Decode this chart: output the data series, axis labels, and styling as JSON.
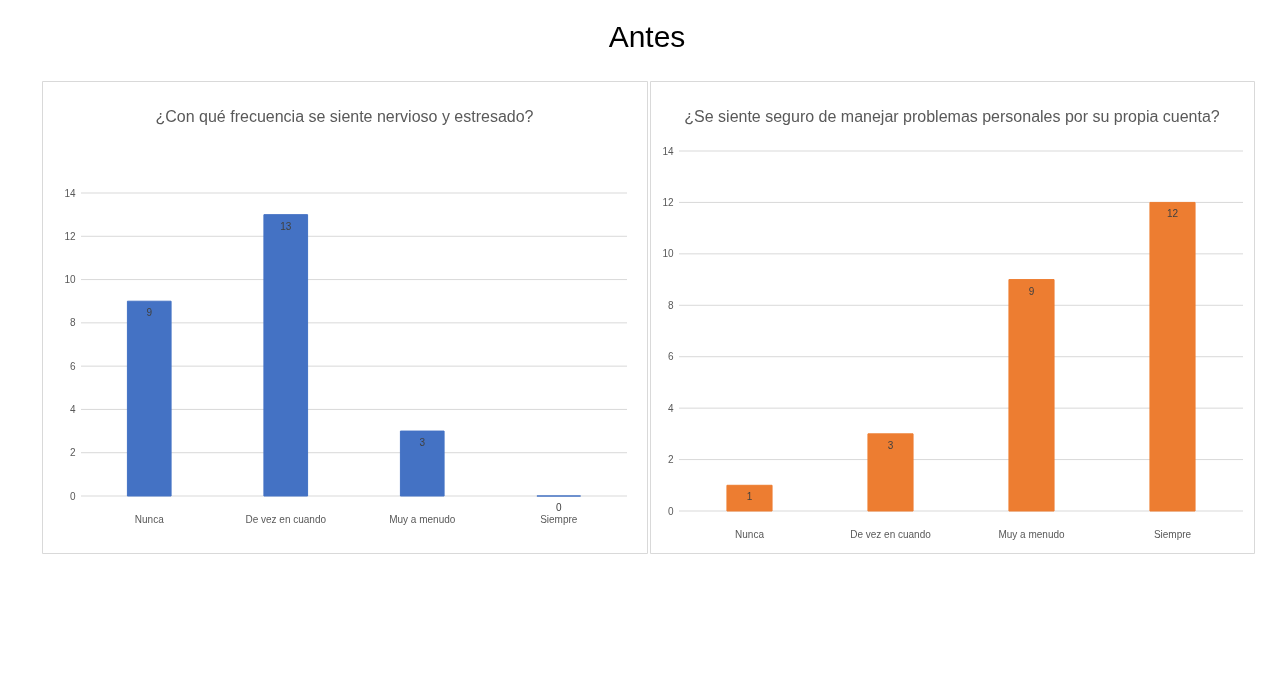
{
  "chart_data": [
    {
      "type": "other",
      "title": "Antes"
    },
    {
      "type": "bar",
      "title": "¿Con qué frecuencia se siente nervioso y estresado?",
      "categories": [
        "Nunca",
        "De vez en cuando",
        "Muy a menudo",
        "Siempre"
      ],
      "values": [
        9,
        13,
        3,
        0
      ],
      "color": "#4472c4",
      "ylim": [
        0,
        14
      ],
      "yticks": [
        0,
        2,
        4,
        6,
        8,
        10,
        12,
        14
      ],
      "grid": "y",
      "data_labels": true
    },
    {
      "type": "bar",
      "title": "¿Se siente seguro de manejar problemas personales por su propia cuenta?",
      "categories": [
        "Nunca",
        "De vez en cuando",
        "Muy a menudo",
        "Siempre"
      ],
      "values": [
        1,
        3,
        9,
        12
      ],
      "color": "#ed7d31",
      "ylim": [
        0,
        14
      ],
      "yticks": [
        0,
        2,
        4,
        6,
        8,
        10,
        12,
        14
      ],
      "grid": "y",
      "data_labels": true
    }
  ]
}
